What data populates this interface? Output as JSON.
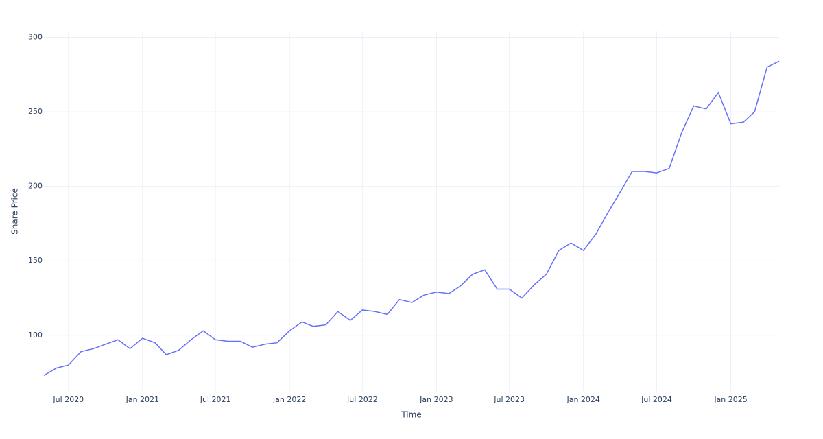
{
  "chart_data": {
    "type": "line",
    "x_title": "Time",
    "y_title": "Share Price",
    "x": [
      "2020-05",
      "2020-06",
      "2020-07",
      "2020-08",
      "2020-09",
      "2020-10",
      "2020-11",
      "2020-12",
      "2021-01",
      "2021-02",
      "2021-03",
      "2021-04",
      "2021-05",
      "2021-06",
      "2021-07",
      "2021-08",
      "2021-09",
      "2021-10",
      "2021-11",
      "2021-12",
      "2022-01",
      "2022-02",
      "2022-03",
      "2022-04",
      "2022-05",
      "2022-06",
      "2022-07",
      "2022-08",
      "2022-09",
      "2022-10",
      "2022-11",
      "2022-12",
      "2023-01",
      "2023-02",
      "2023-03",
      "2023-04",
      "2023-05",
      "2023-06",
      "2023-07",
      "2023-08",
      "2023-09",
      "2023-10",
      "2023-11",
      "2023-12",
      "2024-01",
      "2024-02",
      "2024-03",
      "2024-04",
      "2024-05",
      "2024-06",
      "2024-07",
      "2024-08",
      "2024-09",
      "2024-10",
      "2024-11",
      "2024-12",
      "2025-01",
      "2025-02",
      "2025-03",
      "2025-04",
      "2025-05"
    ],
    "series": [
      {
        "color": "#636efa",
        "values": [
          73,
          78,
          80,
          89,
          91,
          94,
          97,
          91,
          98,
          95,
          87,
          90,
          97,
          103,
          97,
          96,
          96,
          92,
          94,
          95,
          103,
          109,
          106,
          107,
          116,
          110,
          117,
          116,
          114,
          124,
          122,
          127,
          129,
          128,
          133,
          141,
          144,
          131,
          131,
          125,
          134,
          141,
          157,
          162,
          157,
          168,
          182,
          196,
          210,
          210,
          209,
          212,
          236,
          254,
          252,
          263,
          242,
          243,
          250,
          280,
          284
        ]
      }
    ],
    "xlim": [
      "2020-05",
      "2025-05"
    ],
    "xticks": [
      {
        "value": "2020-07",
        "label": "Jul 2020"
      },
      {
        "value": "2021-01",
        "label": "Jan 2021"
      },
      {
        "value": "2021-07",
        "label": "Jul 2021"
      },
      {
        "value": "2022-01",
        "label": "Jan 2022"
      },
      {
        "value": "2022-07",
        "label": "Jul 2022"
      },
      {
        "value": "2023-01",
        "label": "Jan 2023"
      },
      {
        "value": "2023-07",
        "label": "Jul 2023"
      },
      {
        "value": "2024-01",
        "label": "Jan 2024"
      },
      {
        "value": "2024-07",
        "label": "Jul 2024"
      },
      {
        "value": "2025-01",
        "label": "Jan 2025"
      }
    ],
    "ylim": [
      62.6,
      304.4
    ],
    "yticks": [
      100,
      150,
      200,
      250,
      300
    ],
    "grid": true
  }
}
